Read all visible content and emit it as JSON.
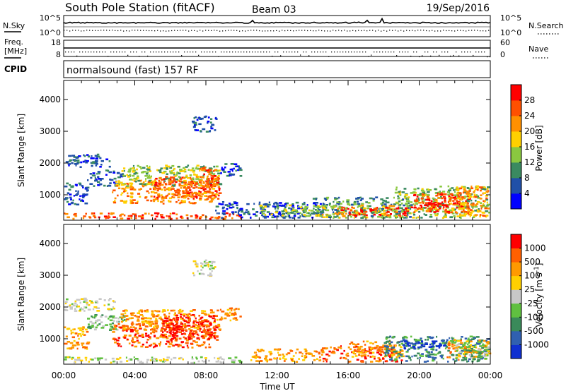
{
  "header": {
    "station": "South Pole Station (fitACF)",
    "beam": "Beam 03",
    "date": "19/Sep/2016"
  },
  "top_panels": {
    "nsky_label": "N.Sky",
    "nsky_ticks": [
      "10^5",
      "10^0"
    ],
    "nsearch_label": "N.Search",
    "nsearch_ticks": [
      "10^5",
      "10^0"
    ],
    "freq_label_line1": "Freq.",
    "freq_label_line2": "[MHz]",
    "freq_ticks": [
      "18",
      "8"
    ],
    "nave_label": "Nave",
    "nave_ticks": [
      "60",
      "0"
    ],
    "cpid_label": "CPID",
    "cpid_value": "normalsound (fast) 157 RF"
  },
  "chart_data": [
    {
      "type": "heatmap",
      "panel": "power",
      "ylabel": "Slant Range [km]",
      "xlabel": "",
      "x_ticks": [
        "00:00",
        "04:00",
        "08:00",
        "12:00",
        "16:00",
        "20:00",
        "00:00"
      ],
      "y_ticks": [
        1000,
        2000,
        3000,
        4000
      ],
      "ylim": [
        200,
        4600
      ],
      "xlim_hours": [
        0,
        24
      ],
      "colorbar": {
        "label": "Power [dB]",
        "ticks": [
          "4",
          "8",
          "12",
          "16",
          "20",
          "24",
          "28"
        ],
        "colors": [
          "#0000ff",
          "#2050a8",
          "#3a8a60",
          "#8ac840",
          "#ffd000",
          "#ff9000",
          "#ff5000",
          "#ff0000"
        ]
      },
      "regions": [
        {
          "t0": 0.0,
          "t1": 2.6,
          "r0": 1900,
          "r1": 2300,
          "level": 1
        },
        {
          "t0": 0.0,
          "t1": 1.3,
          "r0": 700,
          "r1": 1400,
          "level": 1
        },
        {
          "t0": 1.3,
          "t1": 3.4,
          "r0": 1300,
          "r1": 1800,
          "level": 1
        },
        {
          "t0": 2.7,
          "t1": 8.6,
          "r0": 750,
          "r1": 1500,
          "level": 5
        },
        {
          "t0": 3.2,
          "t1": 8.8,
          "r0": 1300,
          "r1": 1950,
          "level": 3
        },
        {
          "t0": 5.0,
          "t1": 8.8,
          "r0": 900,
          "r1": 1600,
          "level": 6
        },
        {
          "t0": 7.6,
          "t1": 8.6,
          "r0": 1100,
          "r1": 1900,
          "level": 6
        },
        {
          "t0": 7.2,
          "t1": 8.6,
          "r0": 3000,
          "r1": 3500,
          "level": 1
        },
        {
          "t0": 8.8,
          "t1": 9.9,
          "r0": 1600,
          "r1": 2000,
          "level": 1
        },
        {
          "t0": 0.0,
          "t1": 10.0,
          "r0": 250,
          "r1": 450,
          "level": 6
        },
        {
          "t0": 8.5,
          "t1": 14.5,
          "r0": 300,
          "r1": 800,
          "level": 1
        },
        {
          "t0": 11.0,
          "t1": 14.5,
          "r0": 350,
          "r1": 700,
          "level": 3
        },
        {
          "t0": 14.0,
          "t1": 19.5,
          "r0": 300,
          "r1": 950,
          "level": 2
        },
        {
          "t0": 14.5,
          "t1": 18.5,
          "r0": 300,
          "r1": 700,
          "level": 4
        },
        {
          "t0": 15.5,
          "t1": 19.3,
          "r0": 350,
          "r1": 650,
          "level": 7
        },
        {
          "t0": 18.5,
          "t1": 24.0,
          "r0": 300,
          "r1": 1300,
          "level": 3
        },
        {
          "t0": 19.5,
          "t1": 22.8,
          "r0": 450,
          "r1": 1100,
          "level": 6
        },
        {
          "t0": 20.0,
          "t1": 21.5,
          "r0": 600,
          "r1": 900,
          "level": 7
        },
        {
          "t0": 22.0,
          "t1": 24.0,
          "r0": 350,
          "r1": 1300,
          "level": 5
        }
      ]
    },
    {
      "type": "heatmap",
      "panel": "velocity",
      "ylabel": "Slant Range [km]",
      "xlabel": "Time UT",
      "x_ticks": [
        "00:00",
        "04:00",
        "08:00",
        "12:00",
        "16:00",
        "20:00",
        "00:00"
      ],
      "y_ticks": [
        1000,
        2000,
        3000,
        4000
      ],
      "ylim": [
        200,
        4600
      ],
      "xlim_hours": [
        0,
        24
      ],
      "colorbar": {
        "label": "Velocity [m s^-1]",
        "ticks": [
          "1000",
          "500",
          "100",
          "25",
          "-25",
          "-100",
          "-500",
          "-1000"
        ],
        "colors": [
          "#1030d0",
          "#3060b0",
          "#3a8a5a",
          "#60c040",
          "#c8c8c8",
          "#ffd000",
          "#ff9a00",
          "#ff6000",
          "#ff0000"
        ]
      },
      "regions": [
        {
          "t0": 0.0,
          "t1": 2.8,
          "r0": 1900,
          "r1": 2300,
          "level": 4
        },
        {
          "t0": 0.0,
          "t1": 1.3,
          "r0": 700,
          "r1": 1400,
          "level": 6
        },
        {
          "t0": 1.3,
          "t1": 3.4,
          "r0": 1300,
          "r1": 1800,
          "level": 3
        },
        {
          "t0": 2.7,
          "t1": 8.6,
          "r0": 750,
          "r1": 1500,
          "level": 7
        },
        {
          "t0": 3.2,
          "t1": 8.8,
          "r0": 1300,
          "r1": 1950,
          "level": 6
        },
        {
          "t0": 5.5,
          "t1": 8.6,
          "r0": 1000,
          "r1": 1800,
          "level": 8
        },
        {
          "t0": 7.2,
          "t1": 8.6,
          "r0": 3000,
          "r1": 3500,
          "level": 4
        },
        {
          "t0": 8.8,
          "t1": 9.9,
          "r0": 1600,
          "r1": 2000,
          "level": 6
        },
        {
          "t0": 0.0,
          "t1": 10.0,
          "r0": 250,
          "r1": 450,
          "level": 4
        },
        {
          "t0": 10.5,
          "t1": 14.5,
          "r0": 300,
          "r1": 700,
          "level": 6
        },
        {
          "t0": 14.5,
          "t1": 19.0,
          "r0": 300,
          "r1": 800,
          "level": 7
        },
        {
          "t0": 16.0,
          "t1": 19.0,
          "r0": 450,
          "r1": 950,
          "level": 6
        },
        {
          "t0": 18.0,
          "t1": 24.0,
          "r0": 300,
          "r1": 1100,
          "level": 2
        },
        {
          "t0": 19.0,
          "t1": 21.5,
          "r0": 700,
          "r1": 1000,
          "level": 0
        },
        {
          "t0": 21.5,
          "t1": 24.0,
          "r0": 350,
          "r1": 1000,
          "level": 6
        },
        {
          "t0": 22.0,
          "t1": 24.0,
          "r0": 400,
          "r1": 900,
          "level": 3
        }
      ]
    }
  ]
}
